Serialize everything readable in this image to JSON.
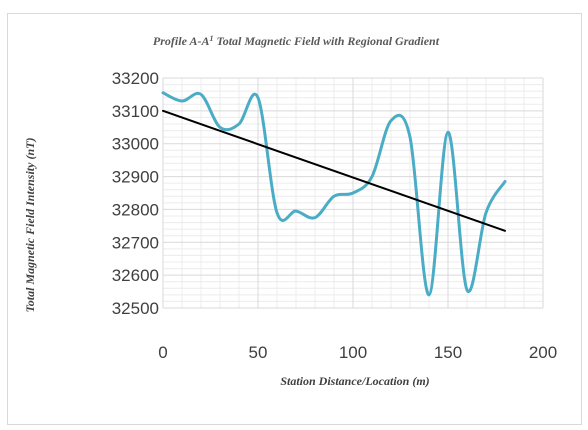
{
  "chart_data": {
    "type": "line",
    "title": "Profile A-A",
    "title_superscript": "1",
    "title_rest": " Total Magnetic Field with Regional Gradient",
    "xlabel": "Station Distance/Location (m)",
    "ylabel": "Total Magnetic Field Intensity (nT)",
    "xlim": [
      0,
      200
    ],
    "ylim": [
      32500,
      33200
    ],
    "x_ticks": [
      "0",
      "50",
      "100",
      "150",
      "200"
    ],
    "y_ticks": [
      "32500",
      "32600",
      "32700",
      "32800",
      "32900",
      "33000",
      "33100",
      "33200"
    ],
    "grid": true,
    "legend": "none",
    "series": [
      {
        "color": "#4bacc6",
        "smooth": true,
        "x": [
          0,
          10,
          20,
          30,
          40,
          50,
          60,
          70,
          80,
          90,
          100,
          110,
          120,
          130,
          140,
          150,
          160,
          170,
          180
        ],
        "y": [
          33155,
          33130,
          33150,
          33050,
          33060,
          33140,
          32790,
          32795,
          32775,
          32840,
          32850,
          32900,
          33070,
          33020,
          32540,
          33035,
          32555,
          32790,
          32885
        ]
      },
      {
        "color": "#000000",
        "smooth": false,
        "x": [
          0,
          180
        ],
        "y": [
          33100,
          32735
        ]
      }
    ]
  }
}
